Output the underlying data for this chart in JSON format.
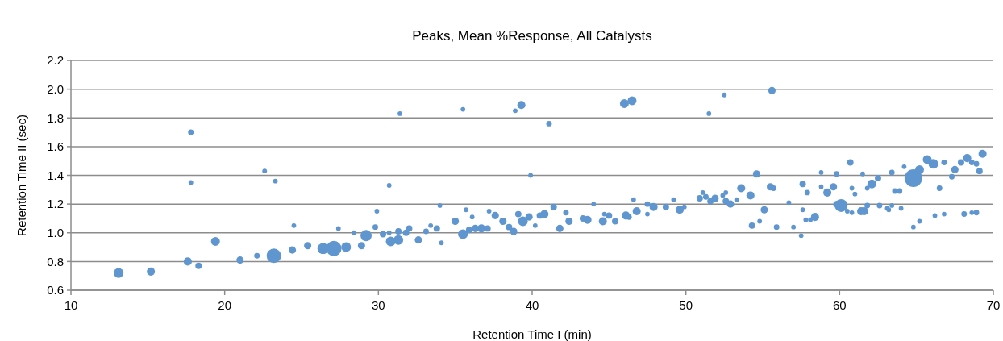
{
  "chart_data": {
    "type": "bubble",
    "title": "Peaks, Mean %Response, All Catalysts",
    "xlabel": "Retention Time I (min)",
    "ylabel": "Retention Time II (sec)",
    "xlim": [
      10,
      70
    ],
    "xticks": [
      10,
      20,
      30,
      40,
      50,
      60,
      70
    ],
    "ylim": [
      0.6,
      2.2
    ],
    "yticks": [
      {
        "value": 0.6,
        "label": "0.6"
      },
      {
        "value": 0.8,
        "label": "0.8"
      },
      {
        "value": 1.0,
        "label": "1.0"
      },
      {
        "value": 1.2,
        "label": "1.2"
      },
      {
        "value": 1.4,
        "label": "1.4"
      },
      {
        "value": 1.6,
        "label": "1.6"
      },
      {
        "value": 1.8,
        "label": "1.8"
      },
      {
        "value": 2.0,
        "label": "2.0"
      },
      {
        "value": 2.2,
        "label": "2.2"
      }
    ],
    "grid": "y",
    "series": [
      {
        "color": "#5f96cf",
        "x": [
          13.1,
          15.2,
          17.6,
          18.3,
          17.8,
          17.8,
          19.4,
          21.0,
          22.1,
          22.6,
          23.3,
          23.2,
          24.4,
          24.5,
          25.4,
          26.4,
          27.1,
          27.4,
          27.9,
          28.4,
          28.9,
          29.2,
          29.8,
          29.9,
          30.3,
          30.7,
          30.8,
          31.3,
          31.3,
          31.8,
          32.0,
          32.6,
          33.1,
          33.4,
          33.8,
          34.0,
          34.1,
          35.0,
          35.5,
          35.7,
          35.9,
          36.1,
          36.3,
          36.7,
          37.1,
          37.2,
          37.6,
          38.1,
          38.5,
          38.8,
          39.1,
          39.4,
          39.8,
          40.2,
          40.5,
          40.8,
          41.4,
          41.8,
          42.2,
          42.4,
          43.3,
          43.6,
          44.0,
          44.6,
          44.7,
          45.0,
          45.4,
          46.1,
          46.3,
          46.6,
          46.8,
          47.5,
          47.5,
          47.9,
          48.7,
          49.2,
          49.6,
          49.9,
          30.7,
          31.4,
          35.5,
          38.9,
          39.3,
          41.1,
          46.0,
          46.5,
          39.9,
          51.5,
          52.5,
          55.6,
          50.9,
          51.1,
          51.3,
          51.6,
          51.9,
          52.4,
          52.6,
          52.6,
          52.9,
          53.3,
          53.6,
          54.2,
          54.3,
          54.6,
          54.8,
          55.1,
          55.5,
          55.7,
          55.9,
          56.7,
          57.0,
          57.5,
          57.6,
          57.6,
          57.9,
          57.8,
          58.1,
          58.4,
          58.8,
          58.8,
          59.2,
          59.6,
          59.8,
          59.8,
          60.1,
          60.5,
          60.7,
          60.8,
          60.8,
          61.0,
          61.4,
          61.5,
          61.6,
          61.8,
          61.8,
          62.1,
          62.5,
          62.6,
          63.1,
          63.2,
          63.4,
          63.4,
          63.6,
          63.9,
          64.0,
          64.2,
          64.8,
          64.8,
          65.2,
          65.2,
          65.7,
          66.1,
          66.2,
          66.5,
          66.8,
          66.8,
          67.3,
          67.5,
          67.9,
          68.1,
          68.3,
          68.6,
          68.6,
          68.9,
          69.1,
          68.9,
          69.3
        ],
        "values": [
          0.72,
          0.73,
          0.8,
          0.77,
          1.7,
          1.35,
          0.94,
          0.81,
          0.84,
          1.43,
          1.36,
          0.84,
          0.88,
          1.05,
          0.91,
          0.89,
          0.89,
          1.03,
          0.9,
          1.0,
          0.91,
          0.98,
          1.04,
          1.15,
          0.99,
          1.0,
          0.94,
          0.95,
          1.01,
          1.0,
          1.03,
          0.95,
          1.01,
          1.05,
          1.03,
          1.19,
          0.93,
          1.08,
          0.99,
          1.16,
          1.02,
          1.11,
          1.03,
          1.03,
          1.03,
          1.15,
          1.12,
          1.08,
          1.04,
          1.01,
          1.13,
          1.08,
          1.11,
          1.05,
          1.12,
          1.13,
          1.18,
          1.03,
          1.14,
          1.08,
          1.1,
          1.09,
          1.2,
          1.08,
          1.13,
          1.12,
          1.08,
          1.12,
          1.11,
          1.23,
          1.15,
          1.2,
          1.13,
          1.18,
          1.18,
          1.23,
          1.16,
          1.18,
          1.33,
          1.83,
          1.86,
          1.85,
          1.89,
          1.76,
          1.9,
          1.92,
          1.4,
          1.83,
          1.96,
          1.99,
          1.24,
          1.28,
          1.25,
          1.22,
          1.24,
          1.26,
          1.28,
          1.22,
          1.2,
          1.23,
          1.31,
          1.26,
          1.05,
          1.41,
          1.08,
          1.16,
          1.32,
          1.31,
          1.04,
          1.21,
          1.04,
          0.98,
          1.34,
          1.16,
          1.28,
          1.09,
          1.09,
          1.11,
          1.42,
          1.32,
          1.28,
          1.32,
          1.41,
          1.2,
          1.19,
          1.15,
          1.49,
          1.31,
          1.14,
          1.27,
          1.15,
          1.41,
          1.15,
          1.31,
          1.19,
          1.34,
          1.38,
          1.19,
          1.17,
          1.16,
          1.42,
          1.19,
          1.29,
          1.29,
          1.17,
          1.46,
          1.04,
          1.38,
          1.08,
          1.44,
          1.51,
          1.48,
          1.12,
          1.31,
          1.49,
          1.13,
          1.39,
          1.44,
          1.49,
          1.13,
          1.52,
          1.49,
          1.14,
          1.48,
          1.43,
          1.14,
          1.55
        ],
        "sizes": [
          0.3,
          0.21,
          0.21,
          0.13,
          0.1,
          0.07,
          0.25,
          0.17,
          0.1,
          0.07,
          0.07,
          0.67,
          0.17,
          0.07,
          0.17,
          0.4,
          0.75,
          0.07,
          0.3,
          0.07,
          0.17,
          0.4,
          0.1,
          0.07,
          0.13,
          0.07,
          0.3,
          0.3,
          0.13,
          0.13,
          0.13,
          0.17,
          0.1,
          0.07,
          0.13,
          0.07,
          0.07,
          0.17,
          0.3,
          0.07,
          0.13,
          0.07,
          0.17,
          0.21,
          0.13,
          0.07,
          0.17,
          0.17,
          0.13,
          0.17,
          0.13,
          0.3,
          0.17,
          0.07,
          0.13,
          0.21,
          0.13,
          0.17,
          0.1,
          0.17,
          0.13,
          0.21,
          0.07,
          0.21,
          0.07,
          0.13,
          0.13,
          0.21,
          0.1,
          0.07,
          0.21,
          0.1,
          0.07,
          0.21,
          0.13,
          0.07,
          0.21,
          0.07,
          0.07,
          0.07,
          0.07,
          0.07,
          0.21,
          0.1,
          0.25,
          0.25,
          0.07,
          0.07,
          0.07,
          0.17,
          0.13,
          0.07,
          0.1,
          0.13,
          0.17,
          0.07,
          0.07,
          0.13,
          0.17,
          0.07,
          0.21,
          0.21,
          0.13,
          0.17,
          0.07,
          0.17,
          0.17,
          0.1,
          0.1,
          0.07,
          0.07,
          0.07,
          0.13,
          0.07,
          0.1,
          0.07,
          0.07,
          0.21,
          0.07,
          0.07,
          0.21,
          0.17,
          0.1,
          0.13,
          0.53,
          0.07,
          0.13,
          0.07,
          0.07,
          0.07,
          0.21,
          0.07,
          0.21,
          0.07,
          0.1,
          0.25,
          0.13,
          0.1,
          0.07,
          0.07,
          0.1,
          0.07,
          0.1,
          0.1,
          0.07,
          0.07,
          0.07,
          1,
          0.07,
          0.25,
          0.25,
          0.3,
          0.07,
          0.1,
          0.1,
          0.07,
          0.1,
          0.17,
          0.13,
          0.1,
          0.21,
          0.1,
          0.07,
          0.1,
          0.13,
          0.1,
          0.21
        ]
      }
    ]
  }
}
